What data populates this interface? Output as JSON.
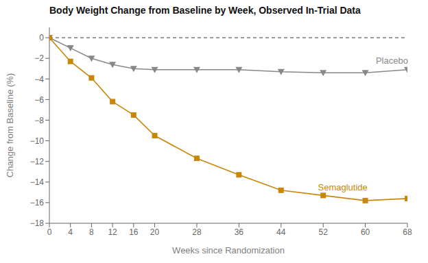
{
  "chart_data": {
    "type": "line",
    "title": "Body Weight Change from Baseline by Week, Observed In-Trial Data",
    "x_label": "Weeks since Randomization",
    "y_label": "Change from Baseline (%)",
    "x": [
      0,
      4,
      8,
      12,
      16,
      20,
      28,
      36,
      44,
      52,
      60,
      68
    ],
    "series": [
      {
        "name": "Placebo",
        "color": "#888888",
        "marker": "triangle_down",
        "values": [
          0,
          -1.0,
          -2.0,
          -2.6,
          -3.0,
          -3.1,
          -3.1,
          -3.1,
          -3.3,
          -3.4,
          -3.4,
          -3.1
        ]
      },
      {
        "name": "Semaglutide",
        "color": "#C8860A",
        "marker": "square",
        "values": [
          0,
          -2.3,
          -3.9,
          -6.2,
          -7.5,
          -9.5,
          -11.7,
          -13.3,
          -14.8,
          -15.3,
          -15.8,
          -15.6
        ]
      }
    ],
    "xlim": [
      0,
      68
    ],
    "ylim": [
      -18,
      1
    ],
    "xticks": [
      0,
      4,
      8,
      12,
      16,
      20,
      28,
      36,
      44,
      52,
      60,
      68
    ],
    "yticks": [
      0,
      {
        "value": -2,
        "label": "−2"
      },
      {
        "value": -4,
        "label": "−4"
      },
      {
        "value": -6,
        "label": "−6"
      },
      {
        "value": -8,
        "label": "−8"
      },
      {
        "value": -10,
        "label": "−10"
      },
      {
        "value": -12,
        "label": "−12"
      },
      {
        "value": -14,
        "label": "−14"
      },
      {
        "value": -16,
        "label": "−16"
      },
      {
        "value": -18,
        "label": "−18"
      }
    ],
    "annotations": [
      {
        "text": "Placebo",
        "x": 62,
        "y": -2.2,
        "color": "#888888"
      },
      {
        "text": "Semaglutide",
        "x": 51,
        "y": -14.5,
        "color": "#C8860A"
      }
    ],
    "hlines": [
      {
        "y": 0,
        "line_style": "dashed"
      }
    ],
    "grid": false
  }
}
